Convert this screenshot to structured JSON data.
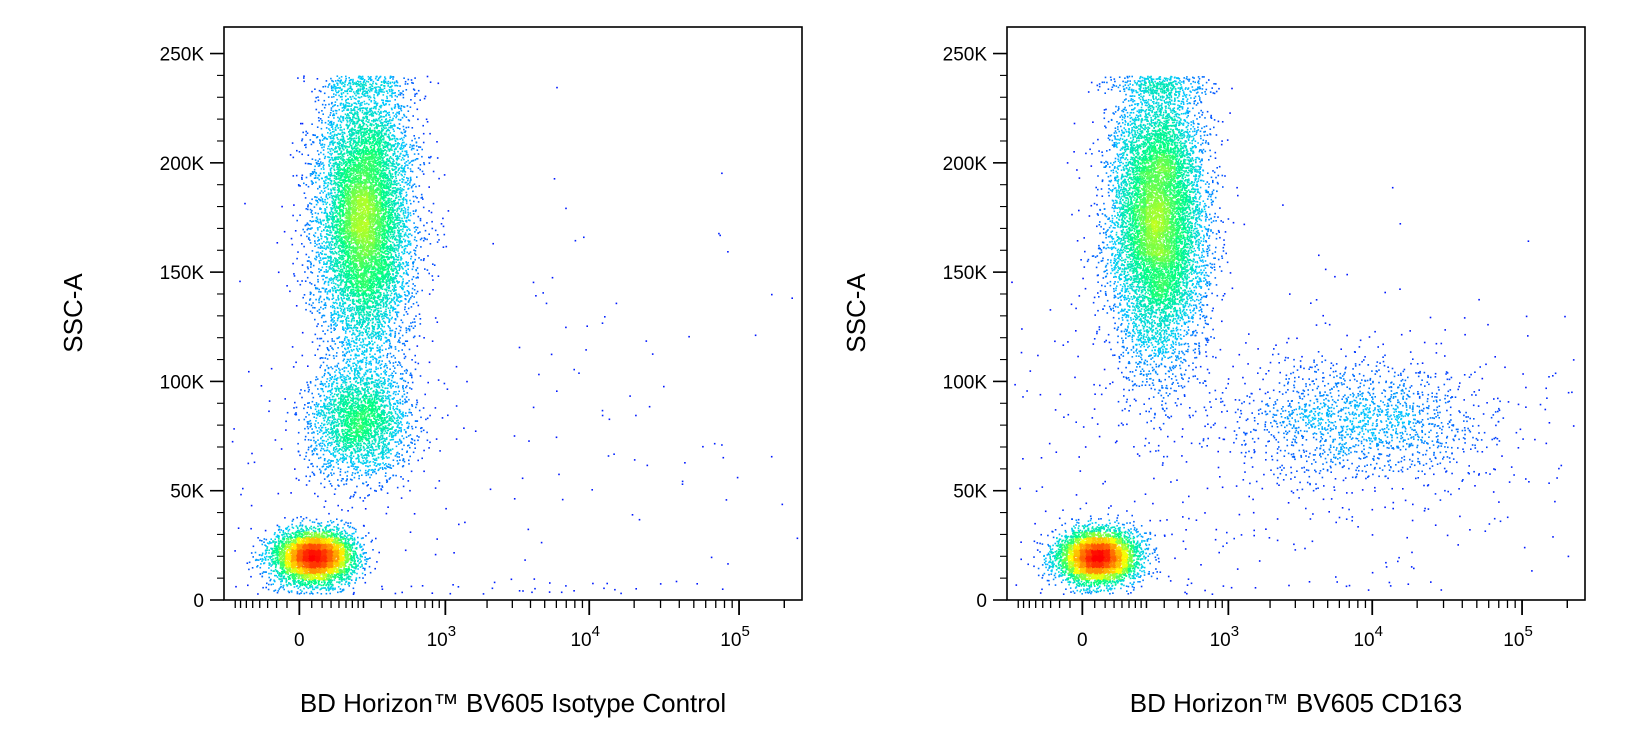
{
  "chart_data": [
    {
      "type": "scatter",
      "subtype": "flow-cytometry-density-dot-plot",
      "xlabel": "BD Horizon™ BV605 Isotype Control",
      "ylabel": "SSC-A",
      "x_scale": "biexponential",
      "ylim": [
        0,
        262144
      ],
      "y_ticks": [
        {
          "value": 0,
          "label": "0"
        },
        {
          "value": 50000,
          "label": "50K"
        },
        {
          "value": 100000,
          "label": "100K"
        },
        {
          "value": 150000,
          "label": "150K"
        },
        {
          "value": 200000,
          "label": "200K"
        },
        {
          "value": 250000,
          "label": "250K"
        }
      ],
      "x_ticks": [
        {
          "value": 0,
          "base": "0",
          "exp": ""
        },
        {
          "value": 1000,
          "base": "10",
          "exp": "3"
        },
        {
          "value": 10000,
          "base": "10",
          "exp": "4"
        },
        {
          "value": 100000,
          "base": "10",
          "exp": "5"
        }
      ],
      "color_scale": [
        "#0000ff",
        "#00c8ff",
        "#00ff80",
        "#ffff00",
        "#ff8000",
        "#ff0000"
      ],
      "populations": [
        {
          "x_center": 30,
          "y_center": 20000,
          "x_spread": 45,
          "y_spread": 6000,
          "count": 5200,
          "peak_color": "#ff0000"
        },
        {
          "x_center": 200,
          "y_center": 175000,
          "x_spread": 110,
          "y_spread": 32000,
          "count": 9000,
          "peak_color": "#ffff00"
        },
        {
          "x_center": 180,
          "y_center": 82000,
          "x_spread": 110,
          "y_spread": 13000,
          "count": 2600,
          "peak_color": "#00ffff"
        },
        {
          "x_center": 400,
          "y_center": 60000,
          "x_spread": 4000,
          "y_spread": 60000,
          "count": 320,
          "peak_color": "#0000ff"
        }
      ]
    },
    {
      "type": "scatter",
      "subtype": "flow-cytometry-density-dot-plot",
      "xlabel": "BD Horizon™ BV605 CD163",
      "ylabel": "SSC-A",
      "x_scale": "biexponential",
      "ylim": [
        0,
        262144
      ],
      "y_ticks": [
        {
          "value": 0,
          "label": "0"
        },
        {
          "value": 50000,
          "label": "50K"
        },
        {
          "value": 100000,
          "label": "100K"
        },
        {
          "value": 150000,
          "label": "150K"
        },
        {
          "value": 200000,
          "label": "200K"
        },
        {
          "value": 250000,
          "label": "250K"
        }
      ],
      "x_ticks": [
        {
          "value": 0,
          "base": "0",
          "exp": ""
        },
        {
          "value": 1000,
          "base": "10",
          "exp": "3"
        },
        {
          "value": 10000,
          "base": "10",
          "exp": "4"
        },
        {
          "value": 100000,
          "base": "10",
          "exp": "5"
        }
      ],
      "color_scale": [
        "#0000ff",
        "#00c8ff",
        "#00ff80",
        "#ffff00",
        "#ff8000",
        "#ff0000"
      ],
      "populations": [
        {
          "x_center": 30,
          "y_center": 20000,
          "x_spread": 45,
          "y_spread": 6000,
          "count": 5200,
          "peak_color": "#ff0000"
        },
        {
          "x_center": 260,
          "y_center": 175000,
          "x_spread": 130,
          "y_spread": 32000,
          "count": 9500,
          "peak_color": "#ffff00"
        },
        {
          "x_center": 8000,
          "y_center": 82000,
          "x_spread": 6000,
          "y_spread": 14000,
          "count": 1600,
          "peak_color": "#0000ff"
        },
        {
          "x_center": 1500,
          "y_center": 70000,
          "x_spread": 2500,
          "y_spread": 40000,
          "count": 500,
          "peak_color": "#0000ff"
        }
      ]
    }
  ]
}
